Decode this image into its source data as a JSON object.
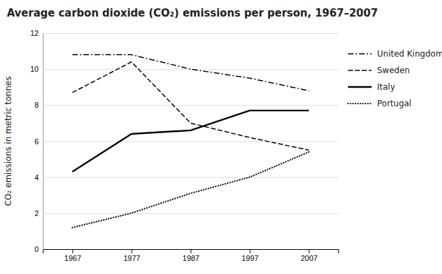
{
  "chart_data": {
    "type": "line",
    "title": "Average carbon dioxide (CO₂) emissions per person, 1967–2007",
    "ylabel": "CO₂ emissions in metric tonnes",
    "x": [
      1967,
      1977,
      1987,
      1997,
      2007
    ],
    "series": [
      {
        "name": "United Kingdom",
        "color": "#000000",
        "line_style": "dashdot",
        "values": [
          10.8,
          10.8,
          10.0,
          9.5,
          8.8
        ]
      },
      {
        "name": "Sweden",
        "color": "#000000",
        "line_style": "dashed",
        "values": [
          8.7,
          10.4,
          7.0,
          6.2,
          5.5
        ]
      },
      {
        "name": "Italy",
        "color": "#000000",
        "line_style": "solid",
        "values": [
          4.3,
          6.4,
          6.6,
          7.7,
          7.7
        ]
      },
      {
        "name": "Portugal",
        "color": "#000000",
        "line_style": "dotted",
        "values": [
          1.2,
          2.0,
          3.1,
          4.0,
          5.4
        ]
      }
    ],
    "xlim": [
      1962,
      2012
    ],
    "ylim": [
      0,
      12
    ],
    "xticks": [
      1967,
      1977,
      1987,
      1997,
      2007
    ],
    "yticks": [
      0,
      2,
      4,
      6,
      8,
      10,
      12
    ],
    "grid": "y",
    "legend": "right"
  }
}
